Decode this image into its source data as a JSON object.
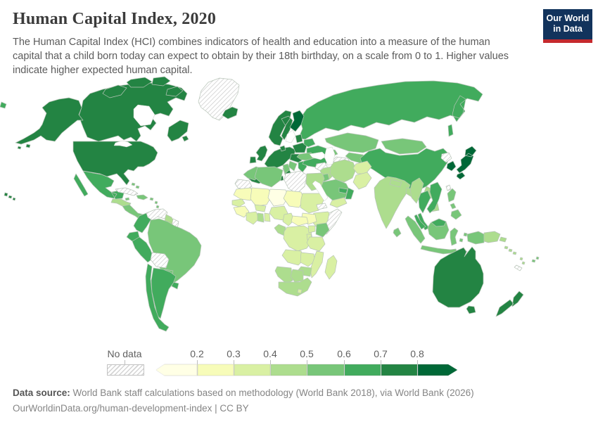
{
  "header": {
    "title": "Human Capital Index, 2020",
    "subtitle": "The Human Capital Index (HCI) combines indicators of health and education into a measure of the human capital that a child born today can expect to obtain by their 18th birthday, on a scale from 0 to 1. Higher values indicate higher expected human capital."
  },
  "logo": {
    "line1": "Our World",
    "line2": "in Data",
    "bg_color": "#12335c",
    "accent_color": "#c5292d"
  },
  "legend": {
    "no_data_label": "No data",
    "ticks": [
      "0.2",
      "0.3",
      "0.4",
      "0.5",
      "0.6",
      "0.7",
      "0.8"
    ]
  },
  "footer": {
    "source_label": "Data source:",
    "source_text": " World Bank staff calculations based on methodology (World Bank 2018), via World Bank (2026)",
    "citation": "OurWorldinData.org/human-development-index | CC BY"
  },
  "chart_data": {
    "type": "choropleth-map",
    "title": "Human Capital Index, 2020",
    "scale_min": 0,
    "scale_max": 1,
    "legend_bins": [
      {
        "id": "lt-0.2",
        "label": "< 0.2",
        "color": "#ffffe5"
      },
      {
        "id": "0.2-0.3",
        "label": "0.2–0.3",
        "color": "#f7fcb9"
      },
      {
        "id": "0.3-0.4",
        "label": "0.3–0.4",
        "color": "#d9f0a3"
      },
      {
        "id": "0.4-0.5",
        "label": "0.4–0.5",
        "color": "#addd8e"
      },
      {
        "id": "0.5-0.6",
        "label": "0.5–0.6",
        "color": "#78c679"
      },
      {
        "id": "0.6-0.7",
        "label": "0.6–0.7",
        "color": "#41ab5d"
      },
      {
        "id": "0.7-0.8",
        "label": "0.7–0.8",
        "color": "#238443"
      },
      {
        "id": "gt-0.8",
        "label": "> 0.8",
        "color": "#006837"
      }
    ],
    "no_data": {
      "id": "no-data",
      "label": "No data",
      "pattern": "diagonal-hatch"
    },
    "regions": {
      "alaska": "0.7-0.8",
      "canada": "0.7-0.8",
      "arctic-islands": "0.7-0.8",
      "greenland": "no-data",
      "iceland": "0.7-0.8",
      "usa": "0.7-0.8",
      "hawaii": "0.7-0.8",
      "mexico": "0.6-0.7",
      "guatemala-honduras": "0.4-0.5",
      "nicaragua-panama": "0.5-0.6",
      "cuba": "no-data",
      "jamaica": "0.5-0.6",
      "hispaniola": "0.5-0.6",
      "caribbean-islands": "0.5-0.6",
      "colombia": "0.6-0.7",
      "venezuela": "no-data",
      "guyana": "0.4-0.5",
      "suriname": "no-data",
      "ecuador": "0.6-0.7",
      "peru": "0.6-0.7",
      "brazil": "0.5-0.6",
      "bolivia": "no-data",
      "paraguay": "0.5-0.6",
      "uruguay": "0.6-0.7",
      "chile": "0.6-0.7",
      "argentina": "0.6-0.7",
      "uk": "0.7-0.8",
      "ireland": "0.7-0.8",
      "norway-sweden": "0.7-0.8",
      "finland": "gt-0.8",
      "denmark": "0.7-0.8",
      "baltics": "0.7-0.8",
      "west-europe": "0.7-0.8",
      "iberia": "0.7-0.8",
      "italy": "0.7-0.8",
      "poland": "0.7-0.8",
      "czech-hungary": "0.7-0.8",
      "belarus": "0.6-0.7",
      "ukraine": "0.6-0.7",
      "romania-bulgaria": "0.5-0.6",
      "balkans": "0.5-0.6",
      "greece": "0.6-0.7",
      "turkey": "0.6-0.7",
      "caucasus": "0.5-0.6",
      "russia": "0.6-0.7",
      "chukotka-wrap": "0.6-0.7",
      "kazakhstan": "0.5-0.6",
      "uzbekistan": "0.5-0.6",
      "turkmenistan": "no-data",
      "kyrgyz-tajik": "0.4-0.5",
      "mongolia": "0.5-0.6",
      "china": "0.6-0.7",
      "taiwan": "no-data",
      "north-korea": "no-data",
      "south-korea": "gt-0.8",
      "japan": "gt-0.8",
      "india": "0.4-0.5",
      "nepal": "0.4-0.5",
      "bangladesh": "0.4-0.5",
      "sri-lanka": "0.5-0.6",
      "pakistan": "0.3-0.4",
      "afghanistan": "0.3-0.4",
      "iran": "0.4-0.5",
      "iraq": "0.4-0.5",
      "syria": "no-data",
      "israel": "0.7-0.8",
      "jordan": "0.5-0.6",
      "saudi-arabia": "0.5-0.6",
      "yemen": "0.3-0.4",
      "oman": "0.6-0.7",
      "uae": "0.6-0.7",
      "morocco": "0.5-0.6",
      "western-sahara": "no-data",
      "algeria": "0.5-0.6",
      "tunisia": "0.5-0.6",
      "libya": "no-data",
      "egypt": "0.4-0.5",
      "mauritania": "0.2-0.3",
      "mali": "0.2-0.3",
      "niger": "lt-0.2",
      "chad": "0.2-0.3",
      "sudan": "0.3-0.4",
      "eritrea": "no-data",
      "ethiopia": "0.3-0.4",
      "somalia": "no-data",
      "south-sudan": "0.2-0.3",
      "senegal": "0.3-0.4",
      "guinea": "0.2-0.3",
      "ivory-coast": "0.3-0.4",
      "ghana": "0.4-0.5",
      "togo-benin": "0.3-0.4",
      "burkina-faso": "0.3-0.4",
      "nigeria": "0.3-0.4",
      "cameroon": "0.3-0.4",
      "central-african-republic": "0.2-0.3",
      "gabon-congo": "0.4-0.5",
      "drc": "0.3-0.4",
      "uganda": "0.3-0.4",
      "kenya": "0.5-0.6",
      "rwanda-burundi": "0.3-0.4",
      "tanzania": "0.3-0.4",
      "angola": "0.3-0.4",
      "zambia": "0.3-0.4",
      "malawi": "0.3-0.4",
      "mozambique": "0.3-0.4",
      "zimbabwe": "0.4-0.5",
      "namibia": "0.4-0.5",
      "botswana": "0.4-0.5",
      "south-africa": "0.4-0.5",
      "lesotho": "0.3-0.4",
      "madagascar": "0.3-0.4",
      "myanmar": "0.4-0.5",
      "thailand": "0.6-0.7",
      "laos": "0.4-0.5",
      "cambodia": "0.4-0.5",
      "vietnam": "0.6-0.7",
      "malaysia": "0.6-0.7",
      "indonesia-sumatra": "0.5-0.6",
      "indonesia-java": "0.5-0.6",
      "indonesia-borneo": "0.5-0.6",
      "malaysia-borneo": "0.6-0.7",
      "indonesia-sulawesi": "0.5-0.6",
      "timor-leste": "0.3-0.4",
      "indonesia-moluccas": "0.5-0.6",
      "philippines": "0.5-0.6",
      "indonesia-papua": "0.5-0.6",
      "papua-new-guinea": "0.4-0.5",
      "solomon-islands": "0.4-0.5",
      "vanuatu": "0.4-0.5",
      "fiji": "0.5-0.6",
      "new-caledonia": "no-data",
      "australia": "0.7-0.8",
      "tasmania": "0.7-0.8",
      "new-zealand": "0.7-0.8"
    }
  }
}
